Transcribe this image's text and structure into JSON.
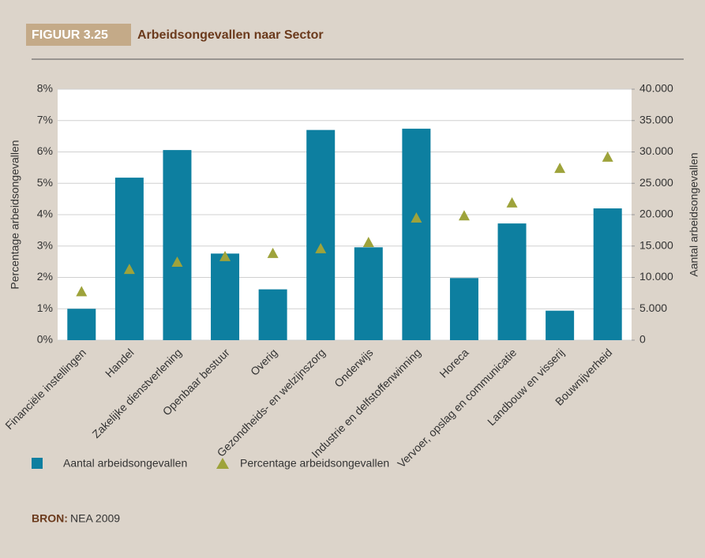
{
  "chart_data": {
    "type": "bar",
    "figure_label": "FIGUUR 3.25",
    "title": "Arbeidsongevallen naar Sector",
    "ylabel": "Percentage arbeidsongevallen",
    "y2label": "Aantal arbeidsongevallen",
    "categories": [
      "Financiële instellingen",
      "Handel",
      "Zakelijke dienstverlening",
      "Openbaar bestuur",
      "Overig",
      "Gezondheids- en welzijnszorg",
      "Onderwijs",
      "Industrie en delfstoffenwinning",
      "Horeca",
      "Vervoer, opslag en communicatie",
      "Landbouw en visserij",
      "Bouwnijverheid"
    ],
    "series": [
      {
        "name": "Aantal arbeidsongevallen",
        "type": "bar",
        "axis": "y2",
        "color": "#0d7fa0",
        "values": [
          5000,
          25900,
          30300,
          13800,
          8100,
          33500,
          14800,
          33700,
          9900,
          18600,
          4700,
          21000
        ]
      },
      {
        "name": "Percentage arbeidsongevallen",
        "type": "triangle",
        "axis": "y",
        "color": "#9ea33b",
        "values": [
          1.55,
          2.26,
          2.49,
          2.67,
          2.77,
          2.92,
          3.12,
          3.9,
          3.97,
          4.38,
          5.48,
          5.84
        ]
      }
    ],
    "ylim": [
      0,
      8
    ],
    "yticks": [
      {
        "value": 0,
        "label": "0%"
      },
      {
        "value": 1,
        "label": "1%"
      },
      {
        "value": 2,
        "label": "2%"
      },
      {
        "value": 3,
        "label": "3%"
      },
      {
        "value": 4,
        "label": "4%"
      },
      {
        "value": 5,
        "label": "5%"
      },
      {
        "value": 6,
        "label": "6%"
      },
      {
        "value": 7,
        "label": "7%"
      },
      {
        "value": 8,
        "label": "8%"
      }
    ],
    "y2lim": [
      0,
      40000
    ],
    "y2ticks": [
      0,
      {
        "value": 5000,
        "label": "5.000"
      },
      {
        "value": 10000,
        "label": "10.000"
      },
      {
        "value": 15000,
        "label": "15.000"
      },
      {
        "value": 20000,
        "label": "20.000"
      },
      {
        "value": 25000,
        "label": "25.000"
      },
      {
        "value": 30000,
        "label": "30.000"
      },
      {
        "value": 35000,
        "label": "35.000"
      },
      {
        "value": 40000,
        "label": "40.000"
      }
    ],
    "grid": true,
    "source_label": "BRON:",
    "source": "NEA 2009"
  }
}
